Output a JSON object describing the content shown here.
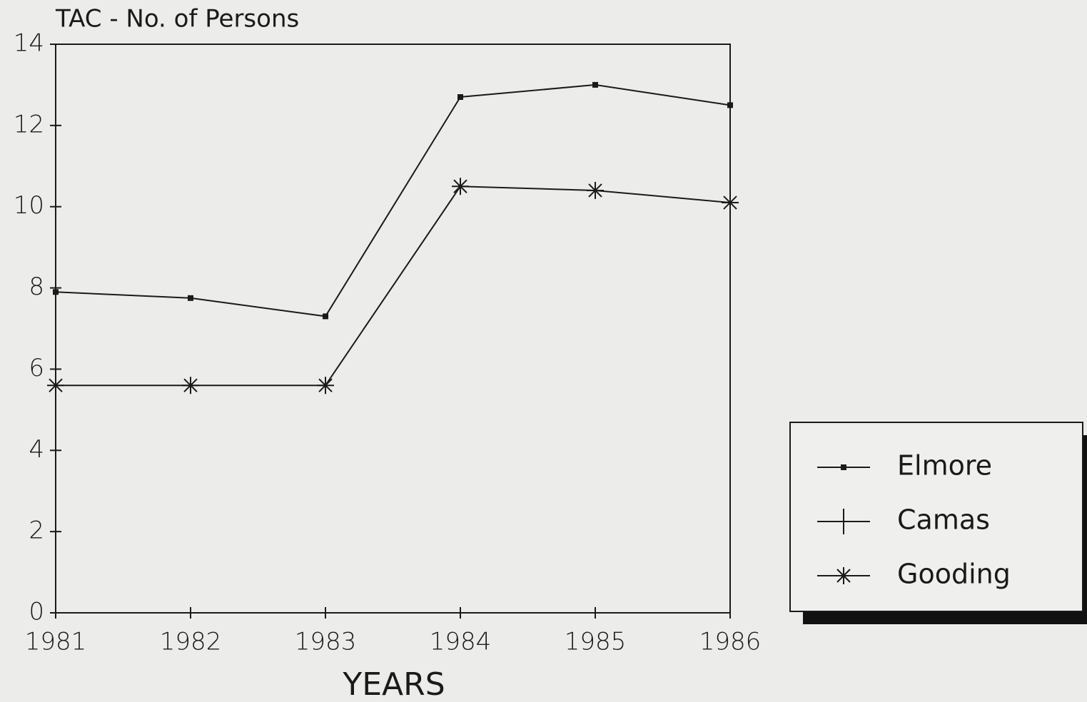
{
  "chart_data": {
    "type": "line",
    "title": "TAC - No. of Persons",
    "x_label": "YEARS",
    "categories": [
      "1981",
      "1982",
      "1983",
      "1984",
      "1985",
      "1986"
    ],
    "series": [
      {
        "name": "Elmore",
        "color": "#1a1a1a",
        "marker": "square",
        "values": [
          7.9,
          7.75,
          7.3,
          12.7,
          13.0,
          12.5
        ]
      },
      {
        "name": "Camas",
        "color": "#1a1a1a",
        "marker": "plus",
        "values": [
          null,
          null,
          null,
          null,
          null,
          null
        ]
      },
      {
        "name": "Gooding",
        "color": "#1a1a1a",
        "marker": "star",
        "values": [
          5.6,
          5.6,
          5.6,
          10.5,
          10.4,
          10.1
        ]
      }
    ],
    "ylim": [
      0,
      14
    ],
    "yticks": [
      0,
      2,
      4,
      6,
      8,
      10,
      12,
      14
    ],
    "legend": "right"
  }
}
